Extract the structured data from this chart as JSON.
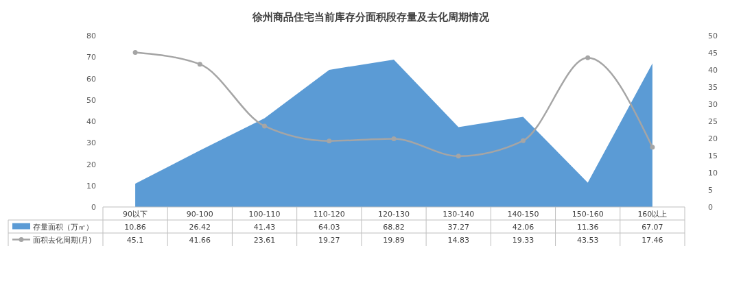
{
  "chart_data": {
    "type": "area",
    "title": "徐州商品住宅当前库存分面积段存量及去化周期情况",
    "categories": [
      "90以下",
      "90-100",
      "100-110",
      "110-120",
      "120-130",
      "130-140",
      "140-150",
      "150-160",
      "160以上"
    ],
    "series": [
      {
        "name": "存量面积（万㎡）",
        "color": "#5b9bd5",
        "values": [
          10.86,
          26.42,
          41.43,
          64.03,
          68.82,
          37.27,
          42.06,
          11.36,
          67.07
        ]
      },
      {
        "name": "面积去化周期(月)",
        "type": "line",
        "axis": "y2",
        "color": "#a5a5a5",
        "marker": "circle",
        "values": [
          45.1,
          41.66,
          23.61,
          19.27,
          19.89,
          14.83,
          19.33,
          43.53,
          17.46
        ]
      }
    ],
    "ylim": [
      0,
      80
    ],
    "yticks": [
      0,
      10,
      20,
      30,
      40,
      50,
      60,
      70,
      80
    ],
    "y2lim": [
      0,
      50
    ],
    "y2ticks": [
      0,
      5,
      10,
      15,
      20,
      25,
      30,
      35,
      40,
      45,
      50
    ],
    "data_labels": true,
    "legend": "bottom",
    "grid": false
  }
}
